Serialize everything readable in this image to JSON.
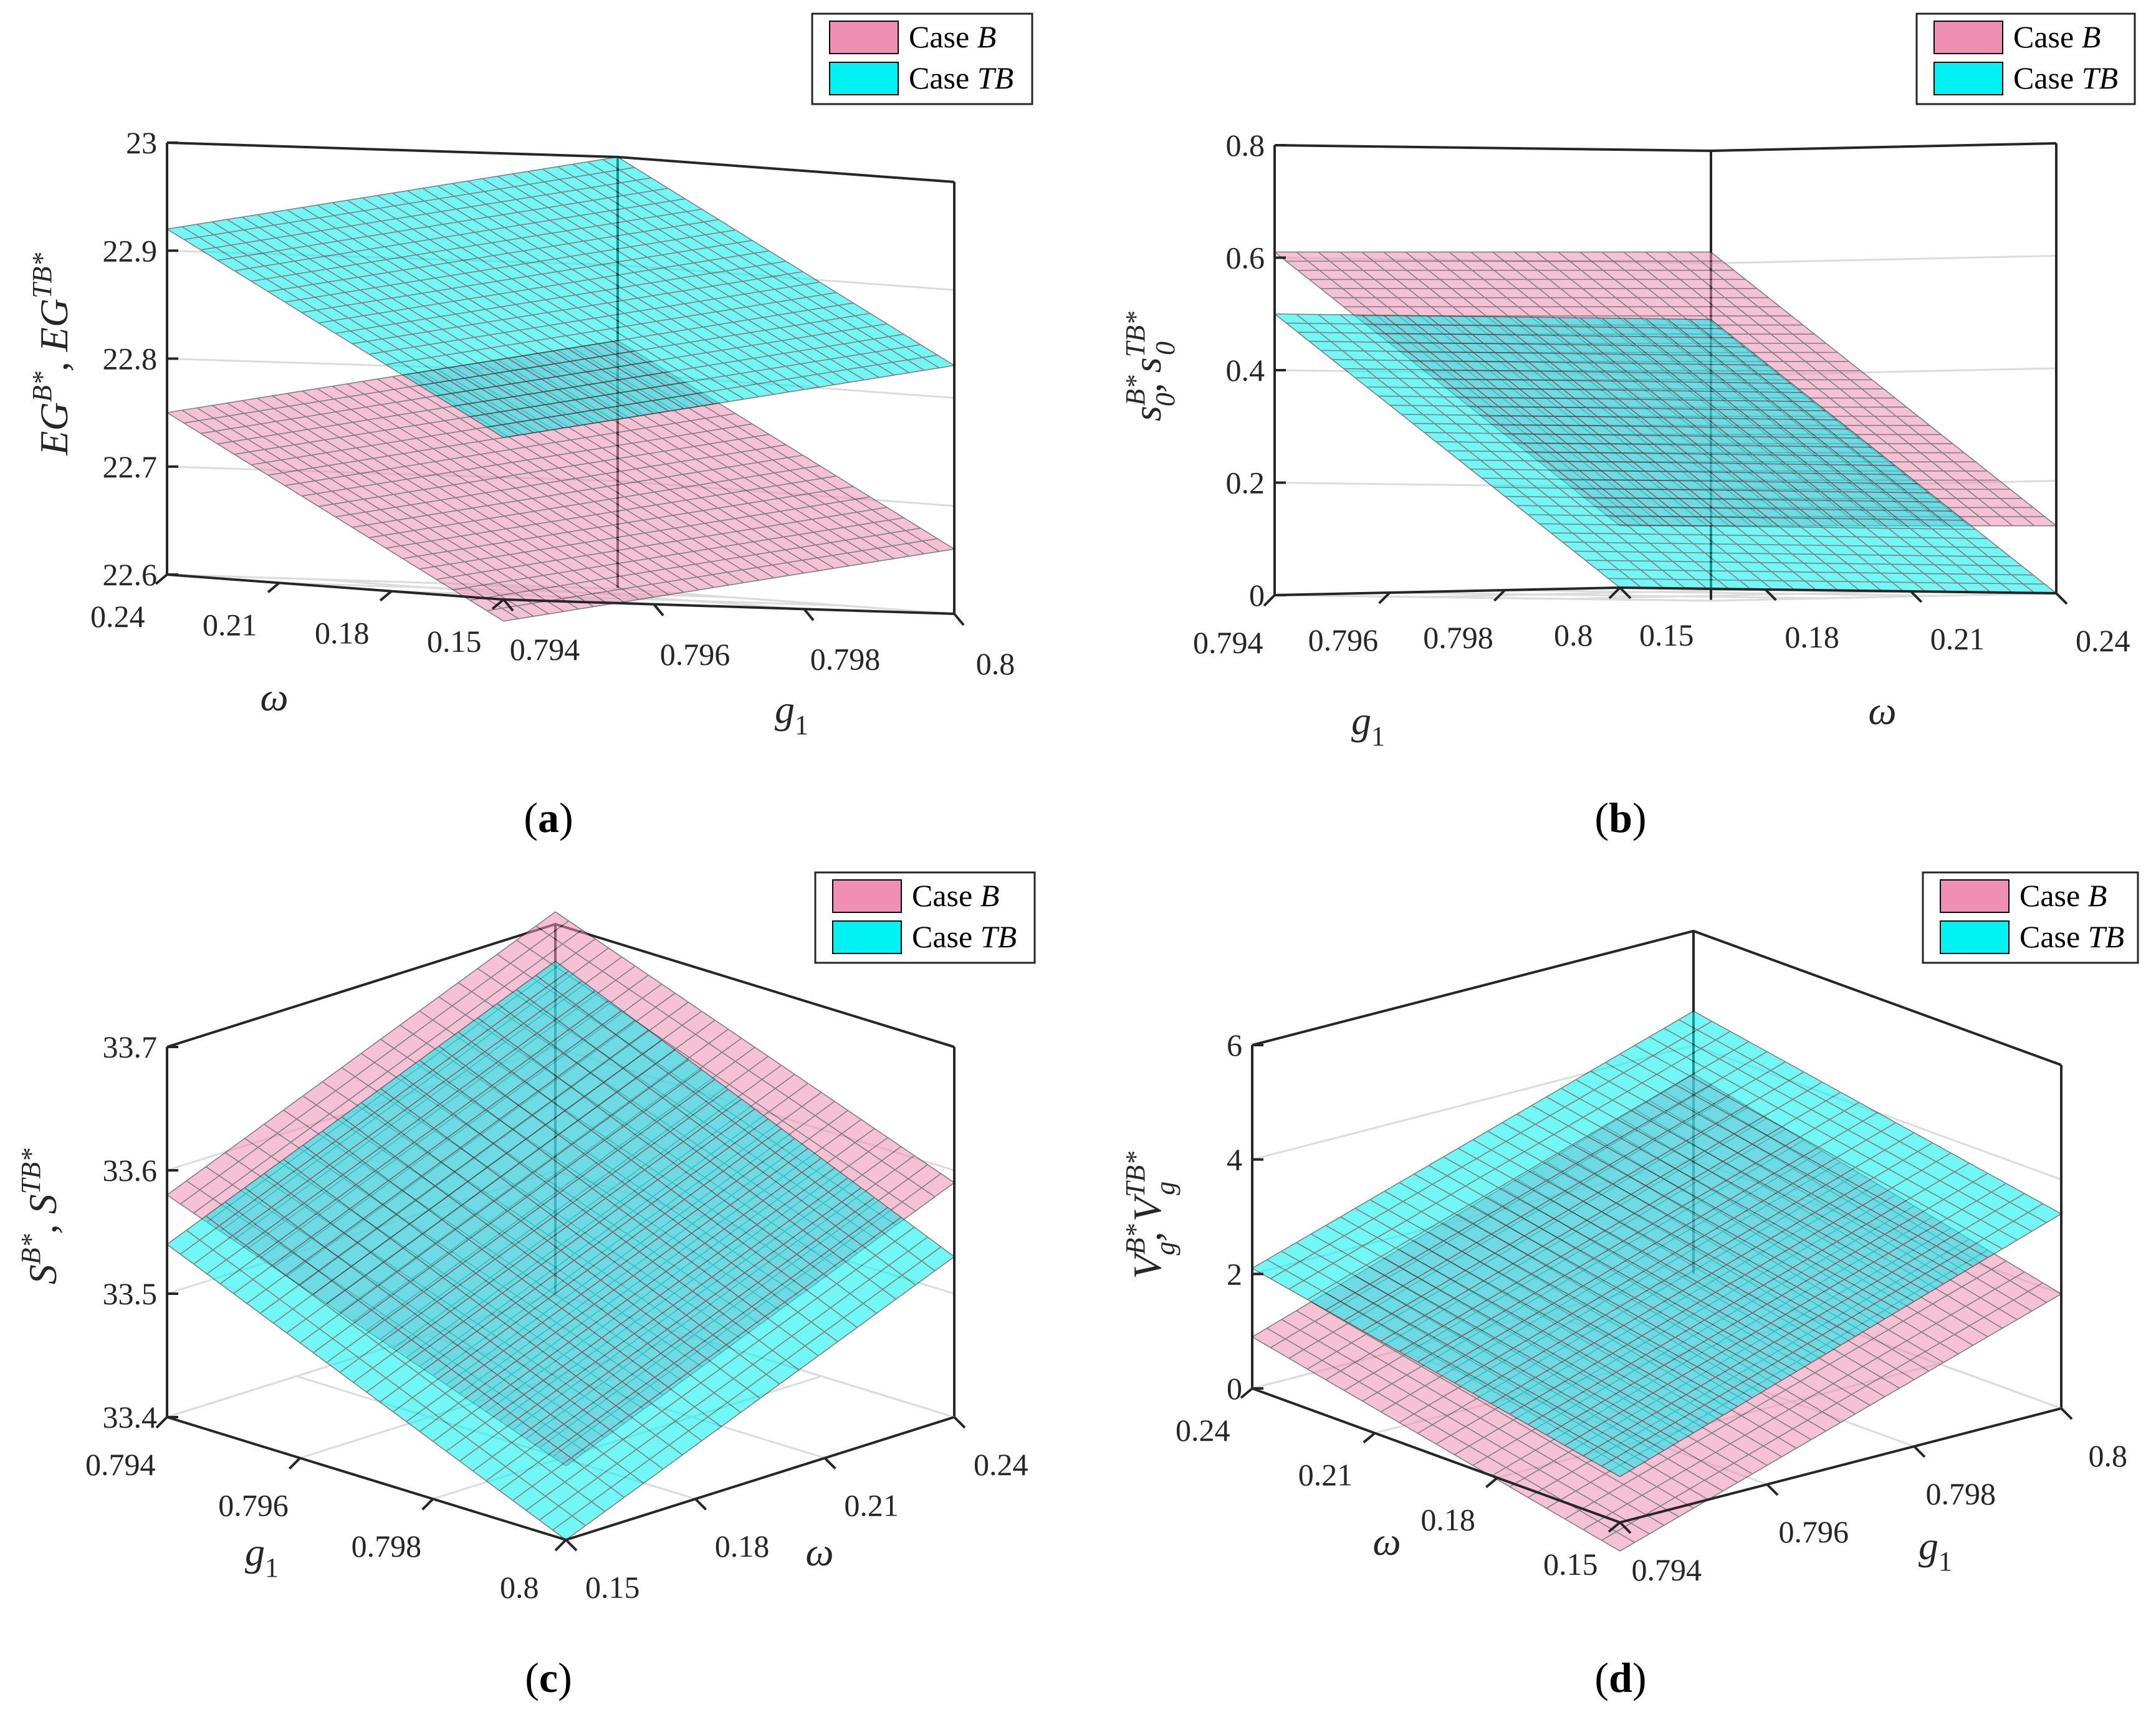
{
  "colors": {
    "case_b": "#f08fb4",
    "case_tb": "#00f2f2",
    "axis": "#262626",
    "grid": "#dcdcdc",
    "mesh": "#1a1a1a"
  },
  "chart_data": [
    {
      "type": "surface",
      "panel": "a",
      "caption": "a",
      "zlabel": {
        "p1": "EG",
        "s1": "B*",
        "mid": ", EG",
        "s2": "TB*"
      },
      "x_var": "g1",
      "y_var": "ω",
      "g1_range": [
        0.794,
        0.8
      ],
      "omega_range": [
        0.15,
        0.24
      ],
      "zlim": [
        22.6,
        23.0
      ],
      "ticks_z": [
        "22.6",
        "22.7",
        "22.8",
        "22.9",
        "23"
      ],
      "ticks_g1": [
        "0.794",
        "0.796",
        "0.798",
        "0.8"
      ],
      "ticks_omega": [
        "0.15",
        "0.18",
        "0.21",
        "0.24"
      ],
      "legend": [
        "B",
        "TB"
      ],
      "series": [
        {
          "name": "B",
          "corners": {
            "g1_0.794_w_0.15": 22.58,
            "g1_0.8_w_0.15": 22.66,
            "g1_0.794_w_0.24": 22.75,
            "g1_0.8_w_0.24": 22.83
          }
        },
        {
          "name": "TB",
          "corners": {
            "g1_0.794_w_0.15": 22.75,
            "g1_0.8_w_0.15": 22.83,
            "g1_0.794_w_0.24": 22.92,
            "g1_0.8_w_0.24": 23.0
          }
        }
      ]
    },
    {
      "type": "surface",
      "panel": "b",
      "caption": "b",
      "zlabel": {
        "p1": "s",
        "s1": "B*",
        "sub1": "0",
        "mid": ", s",
        "s2": "TB*",
        "sub2": "0"
      },
      "x_var": "g1",
      "y_var": "ω",
      "g1_range": [
        0.794,
        0.8
      ],
      "omega_range": [
        0.15,
        0.24
      ],
      "zlim": [
        0,
        0.8
      ],
      "ticks_z": [
        "0",
        "0.2",
        "0.4",
        "0.6",
        "0.8"
      ],
      "ticks_g1": [
        "0.794",
        "0.796",
        "0.798",
        "0.8"
      ],
      "ticks_omega": [
        "0.15",
        "0.18",
        "0.21",
        "0.24"
      ],
      "legend": [
        "B",
        "TB"
      ],
      "series": [
        {
          "name": "B",
          "corners": {
            "g1_0.794_w_0.15": 0.61,
            "g1_0.8_w_0.15": 0.11,
            "g1_0.794_w_0.24": 0.62,
            "g1_0.8_w_0.24": 0.12
          }
        },
        {
          "name": "TB",
          "corners": {
            "g1_0.794_w_0.15": 0.5,
            "g1_0.8_w_0.15": 0.0,
            "g1_0.794_w_0.24": 0.5,
            "g1_0.8_w_0.24": 0.0
          }
        }
      ]
    },
    {
      "type": "surface",
      "panel": "c",
      "caption": "c",
      "zlabel": {
        "p1": "S",
        "s1": "B*",
        "mid": ", S",
        "s2": "TB*"
      },
      "x_var": "g1",
      "y_var": "ω",
      "g1_range": [
        0.794,
        0.8
      ],
      "omega_range": [
        0.15,
        0.24
      ],
      "zlim": [
        33.4,
        33.7
      ],
      "ticks_z": [
        "33.4",
        "33.5",
        "33.6",
        "33.7"
      ],
      "ticks_g1": [
        "0.794",
        "0.796",
        "0.798",
        "0.8"
      ],
      "ticks_omega": [
        "0.15",
        "0.18",
        "0.21",
        "0.24"
      ],
      "legend": [
        "B",
        "TB"
      ],
      "series": [
        {
          "name": "B",
          "corners": {
            "g1_0.794_w_0.15": 33.58,
            "g1_0.8_w_0.15": 33.46,
            "g1_0.794_w_0.24": 33.71,
            "g1_0.8_w_0.24": 33.59
          }
        },
        {
          "name": "TB",
          "corners": {
            "g1_0.794_w_0.15": 33.54,
            "g1_0.8_w_0.15": 33.4,
            "g1_0.794_w_0.24": 33.67,
            "g1_0.8_w_0.24": 33.53
          }
        }
      ]
    },
    {
      "type": "surface",
      "panel": "d",
      "caption": "d",
      "zlabel": {
        "p1": "V",
        "s1": "B*",
        "sub1": "g",
        "mid": ", V",
        "s2": "TB*",
        "sub2": "g"
      },
      "x_var": "g1",
      "y_var": "ω",
      "g1_range": [
        0.794,
        0.8
      ],
      "omega_range": [
        0.15,
        0.24
      ],
      "zlim": [
        0,
        6
      ],
      "ticks_z": [
        "0",
        "2",
        "4",
        "6"
      ],
      "ticks_g1": [
        "0.794",
        "0.796",
        "0.798",
        "0.8"
      ],
      "ticks_omega": [
        "0.15",
        "0.18",
        "0.21",
        "0.24"
      ],
      "legend": [
        "B",
        "TB"
      ],
      "series": [
        {
          "name": "B",
          "corners": {
            "g1_0.794_w_0.15": -0.5,
            "g1_0.8_w_0.15": 2.0,
            "g1_0.794_w_0.24": 0.9,
            "g1_0.8_w_0.24": 3.5
          }
        },
        {
          "name": "TB",
          "corners": {
            "g1_0.794_w_0.15": 0.8,
            "g1_0.8_w_0.15": 3.4,
            "g1_0.794_w_0.24": 2.1,
            "g1_0.8_w_0.24": 4.6
          }
        }
      ]
    }
  ]
}
